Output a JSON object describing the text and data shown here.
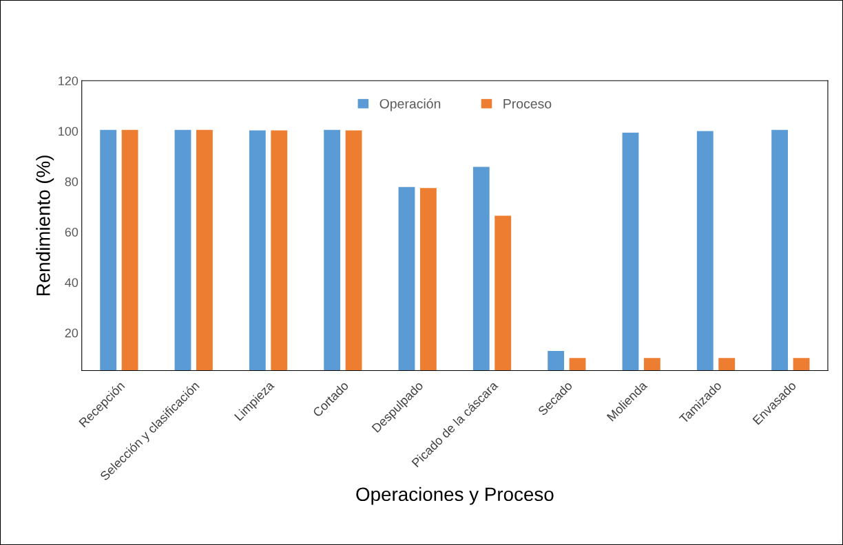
{
  "chart_data": {
    "type": "bar",
    "xlabel": "Operaciones y Proceso",
    "ylabel": "Rendimiento (%)",
    "categories": [
      "Recepción",
      "Selección y clasificación",
      "Limpieza",
      "Cortado",
      "Despulpado",
      "Picado de la cáscara",
      "Secado",
      "Molienda",
      "Tamizado",
      "Envasado"
    ],
    "series": [
      {
        "name": "Operación",
        "color": "#5b9bd5",
        "values": [
          100.5,
          100.5,
          100.3,
          100.5,
          77.8,
          85.8,
          12.8,
          99.4,
          100,
          100.5
        ]
      },
      {
        "name": "Proceso",
        "color": "#ed7d31",
        "values": [
          100.5,
          100.5,
          100.3,
          100.3,
          77.4,
          66.4,
          10,
          10,
          10,
          10
        ]
      }
    ],
    "ylim": [
      5,
      120
    ],
    "yticks": [
      20,
      40,
      60,
      80,
      100,
      120
    ],
    "grid": false,
    "legend": "top"
  }
}
